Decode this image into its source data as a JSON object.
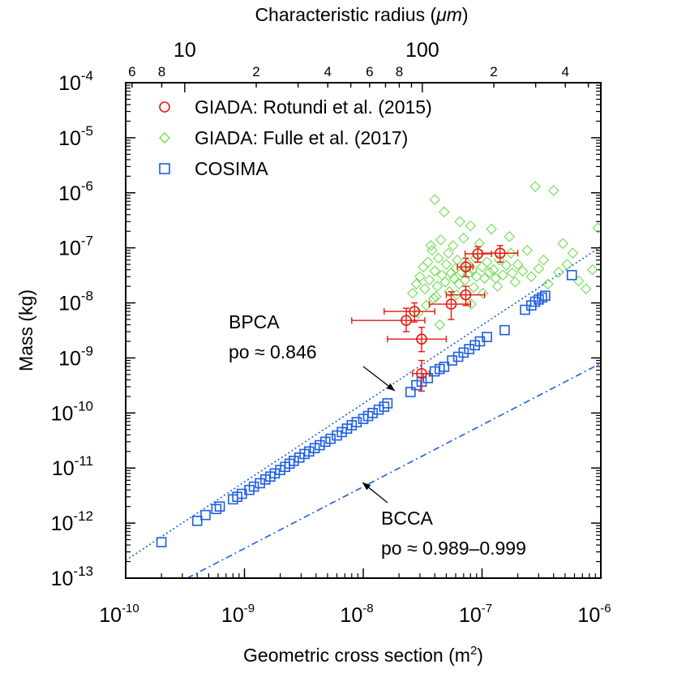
{
  "chart_data": {
    "type": "scatter",
    "x_scale": "log",
    "y_scale": "log",
    "xlabel": "Geometric cross section (m",
    "xlabel_sup": "2",
    "xlabel_end": ")",
    "ylabel": "Mass (kg)",
    "top_xlabel": "Characteristic radius (",
    "top_xlabel_mu": "μm",
    "top_xlabel_end": ")",
    "xlim": [
      1e-10,
      1e-06
    ],
    "ylim": [
      1e-13,
      0.0001
    ],
    "x_ticks": [
      {
        "base": "10",
        "exp": "-10",
        "value": 1e-10
      },
      {
        "base": "10",
        "exp": "-9",
        "value": 1e-09
      },
      {
        "base": "10",
        "exp": "-8",
        "value": 1e-08
      },
      {
        "base": "10",
        "exp": "-7",
        "value": 1e-07
      },
      {
        "base": "10",
        "exp": "-6",
        "value": 1e-06
      }
    ],
    "y_ticks": [
      {
        "base": "10",
        "exp": "-13",
        "value": 1e-13
      },
      {
        "base": "10",
        "exp": "-12",
        "value": 1e-12
      },
      {
        "base": "10",
        "exp": "-11",
        "value": 1e-11
      },
      {
        "base": "10",
        "exp": "-10",
        "value": 1e-10
      },
      {
        "base": "10",
        "exp": "-9",
        "value": 1e-09
      },
      {
        "base": "10",
        "exp": "-8",
        "value": 1e-08
      },
      {
        "base": "10",
        "exp": "-7",
        "value": 1e-07
      },
      {
        "base": "10",
        "exp": "-6",
        "value": 1e-06
      },
      {
        "base": "10",
        "exp": "-5",
        "value": 1e-05
      },
      {
        "base": "10",
        "exp": "-4",
        "value": 0.0001
      }
    ],
    "top_ticks": [
      {
        "label": "6",
        "radius_um": 6,
        "major": false
      },
      {
        "label": "8",
        "radius_um": 8,
        "major": false
      },
      {
        "label": "10",
        "radius_um": 10,
        "major": true
      },
      {
        "label": "2",
        "radius_um": 20,
        "major": false
      },
      {
        "label": "4",
        "radius_um": 40,
        "major": false
      },
      {
        "label": "6",
        "radius_um": 60,
        "major": false
      },
      {
        "label": "8",
        "radius_um": 80,
        "major": false
      },
      {
        "label": "100",
        "radius_um": 100,
        "major": true
      },
      {
        "label": "2",
        "radius_um": 200,
        "major": false
      },
      {
        "label": "4",
        "radius_um": 400,
        "major": false
      }
    ],
    "top_minor_unlabeled": [
      30,
      50,
      70,
      90,
      300,
      500
    ],
    "legend": {
      "placement": "top-left",
      "entries": [
        {
          "label": "GIADA: Rotundi et al. (2015)",
          "marker": "circle",
          "color": "#e8170f"
        },
        {
          "label": "GIADA: Fulle et al. (2017)",
          "marker": "diamond",
          "color": "#6fdc4e"
        },
        {
          "label": "COSIMA",
          "marker": "square",
          "color": "#1c5fe0"
        }
      ]
    },
    "annotations": [
      {
        "line1": "BPCA",
        "line2": "po ≈ 0.846"
      },
      {
        "line1": "BCCA",
        "line2": "po ≈ 0.989–0.999"
      }
    ],
    "lines": [
      {
        "name": "BPCA",
        "style": "dotted",
        "color": "#1c5fe0",
        "x": [
          1e-10,
          1e-06
        ],
        "y": [
          2.1e-13,
          1.05e-07
        ]
      },
      {
        "name": "BCCA",
        "style": "dashdot",
        "color": "#1c5fe0",
        "x": [
          3.3e-10,
          1e-06
        ],
        "y": [
          1e-13,
          8e-10
        ]
      }
    ],
    "series": [
      {
        "name": "GIADA: Rotundi et al. (2015)",
        "color": "#e8170f",
        "marker": "circle",
        "points": [
          {
            "x": 2.3e-08,
            "y": 4.8e-09,
            "xerr": [
              8e-09,
              3.3e-08
            ],
            "yerr": [
              3e-09,
              8e-09
            ]
          },
          {
            "x": 2.7e-08,
            "y": 7e-09,
            "xerr": [
              1.5e-08,
              4e-08
            ],
            "yerr": [
              4.5e-09,
              1e-08
            ]
          },
          {
            "x": 3.1e-08,
            "y": 2.2e-09,
            "xerr": [
              1.6e-08,
              5e-08
            ],
            "yerr": [
              1.3e-09,
              3.6e-09
            ]
          },
          {
            "x": 3.1e-08,
            "y": 5.2e-10,
            "xerr": [
              2.6e-08,
              3.6e-08
            ],
            "yerr": [
              2.5e-10,
              9e-10
            ]
          },
          {
            "x": 5.5e-08,
            "y": 9.5e-09,
            "xerr": [
              3.6e-08,
              8e-08
            ],
            "yerr": [
              5e-09,
              1.6e-08
            ]
          },
          {
            "x": 7.3e-08,
            "y": 1.4e-08,
            "xerr": [
              5e-08,
              1.05e-07
            ],
            "yerr": [
              9e-09,
              2e-08
            ]
          },
          {
            "x": 7.3e-08,
            "y": 4.5e-08,
            "xerr": [
              6.2e-08,
              8.4e-08
            ],
            "yerr": [
              3e-08,
              6.5e-08
            ]
          },
          {
            "x": 9.2e-08,
            "y": 7.8e-08,
            "xerr": [
              7.2e-08,
              1.2e-07
            ],
            "yerr": [
              5.5e-08,
              1.05e-07
            ]
          },
          {
            "x": 1.42e-07,
            "y": 8e-08,
            "xerr": [
              1e-07,
              2e-07
            ],
            "yerr": [
              5.5e-08,
              1.1e-07
            ]
          }
        ]
      },
      {
        "name": "GIADA: Fulle et al. (2017)",
        "color": "#6fdc4e",
        "marker": "diamond",
        "points": [
          {
            "x": 2.6e-08,
            "y": 1.5e-08
          },
          {
            "x": 2.8e-08,
            "y": 2.2e-08
          },
          {
            "x": 3e-08,
            "y": 3e-08
          },
          {
            "x": 3.2e-08,
            "y": 4.5e-08
          },
          {
            "x": 3.3e-08,
            "y": 1.8e-08
          },
          {
            "x": 3.5e-08,
            "y": 5.5e-08
          },
          {
            "x": 3.6e-08,
            "y": 2.6e-08
          },
          {
            "x": 3.8e-08,
            "y": 9e-08
          },
          {
            "x": 3.9e-08,
            "y": 1.2e-08
          },
          {
            "x": 4e-08,
            "y": 3.8e-08
          },
          {
            "x": 4e-08,
            "y": 7.5e-07
          },
          {
            "x": 4.2e-08,
            "y": 2e-08
          },
          {
            "x": 4.3e-08,
            "y": 6.5e-08
          },
          {
            "x": 4.5e-08,
            "y": 1.4e-07
          },
          {
            "x": 4.6e-08,
            "y": 3.2e-08
          },
          {
            "x": 4.8e-08,
            "y": 4.5e-07
          },
          {
            "x": 4.9e-08,
            "y": 2.4e-08
          },
          {
            "x": 5e-08,
            "y": 5e-08
          },
          {
            "x": 5.2e-08,
            "y": 8e-08
          },
          {
            "x": 5.3e-08,
            "y": 1.6e-08
          },
          {
            "x": 5.5e-08,
            "y": 3.5e-08
          },
          {
            "x": 5.7e-08,
            "y": 1.1e-07
          },
          {
            "x": 5.8e-08,
            "y": 2.8e-08
          },
          {
            "x": 6e-08,
            "y": 4.2e-08
          },
          {
            "x": 6.2e-08,
            "y": 6e-08
          },
          {
            "x": 6.4e-08,
            "y": 2.2e-08
          },
          {
            "x": 6.5e-08,
            "y": 3e-07
          },
          {
            "x": 6.7e-08,
            "y": 3.6e-08
          },
          {
            "x": 7e-08,
            "y": 1.5e-07
          },
          {
            "x": 7.2e-08,
            "y": 2.6e-08
          },
          {
            "x": 7.5e-08,
            "y": 5.2e-08
          },
          {
            "x": 7.7e-08,
            "y": 3.4e-08
          },
          {
            "x": 8e-08,
            "y": 2.5e-07
          },
          {
            "x": 8.3e-08,
            "y": 4e-08
          },
          {
            "x": 8.5e-08,
            "y": 1.9e-08
          },
          {
            "x": 8.8e-08,
            "y": 6.5e-08
          },
          {
            "x": 9e-08,
            "y": 3e-08
          },
          {
            "x": 9.5e-08,
            "y": 1.2e-07
          },
          {
            "x": 1e-07,
            "y": 4.5e-08
          },
          {
            "x": 1.05e-07,
            "y": 2.8e-08
          },
          {
            "x": 1.1e-07,
            "y": 5.5e-08
          },
          {
            "x": 1.15e-07,
            "y": 3.6e-08
          },
          {
            "x": 1.2e-07,
            "y": 2.2e-07
          },
          {
            "x": 1.25e-07,
            "y": 4e-08
          },
          {
            "x": 1.3e-07,
            "y": 2.8e-08
          },
          {
            "x": 1.4e-07,
            "y": 6e-08
          },
          {
            "x": 1.5e-07,
            "y": 3.2e-08
          },
          {
            "x": 1.6e-07,
            "y": 4.8e-08
          },
          {
            "x": 1.7e-07,
            "y": 1.6e-07
          },
          {
            "x": 1.8e-07,
            "y": 3.5e-08
          },
          {
            "x": 1.9e-07,
            "y": 2.4e-08
          },
          {
            "x": 2e-07,
            "y": 5e-08
          },
          {
            "x": 2.2e-07,
            "y": 3.8e-08
          },
          {
            "x": 2.4e-07,
            "y": 9e-08
          },
          {
            "x": 2.6e-07,
            "y": 3e-08
          },
          {
            "x": 2.8e-07,
            "y": 1.3e-06
          },
          {
            "x": 3e-07,
            "y": 4.2e-08
          },
          {
            "x": 3.3e-07,
            "y": 6e-08
          },
          {
            "x": 3.6e-07,
            "y": 2.2e-08
          },
          {
            "x": 4e-07,
            "y": 1.1e-06
          },
          {
            "x": 4.4e-07,
            "y": 3.6e-08
          },
          {
            "x": 4.8e-07,
            "y": 1.2e-07
          },
          {
            "x": 5.2e-07,
            "y": 5e-08
          },
          {
            "x": 5.8e-07,
            "y": 8e-08
          },
          {
            "x": 6.5e-07,
            "y": 2.5e-08
          },
          {
            "x": 7.5e-07,
            "y": 1.8e-08
          },
          {
            "x": 8.5e-07,
            "y": 4e-08
          },
          {
            "x": 9.5e-07,
            "y": 2.3e-07
          },
          {
            "x": 2.9e-08,
            "y": 6.5e-09
          },
          {
            "x": 3.4e-08,
            "y": 9e-09
          },
          {
            "x": 4.4e-08,
            "y": 4e-09
          },
          {
            "x": 3.7e-08,
            "y": 1.1e-07
          },
          {
            "x": 4.1e-08,
            "y": 1.3e-08
          },
          {
            "x": 6.1e-08,
            "y": 1.4e-08
          },
          {
            "x": 8.1e-08,
            "y": 9.5e-09
          },
          {
            "x": 1.02e-07,
            "y": 1.5e-08
          },
          {
            "x": 1.35e-07,
            "y": 2e-08
          },
          {
            "x": 1.75e-07,
            "y": 8e-08
          }
        ]
      },
      {
        "name": "COSIMA",
        "color": "#1c5fe0",
        "marker": "square",
        "points": [
          {
            "x": 2e-10,
            "y": 4.5e-13
          },
          {
            "x": 4e-10,
            "y": 1.1e-12
          },
          {
            "x": 4.7e-10,
            "y": 1.4e-12
          },
          {
            "x": 5.8e-10,
            "y": 1.8e-12
          },
          {
            "x": 6.2e-10,
            "y": 2e-12
          },
          {
            "x": 8e-10,
            "y": 2.7e-12
          },
          {
            "x": 8.7e-10,
            "y": 3e-12
          },
          {
            "x": 9.5e-10,
            "y": 3.4e-12
          },
          {
            "x": 1.1e-09,
            "y": 4e-12
          },
          {
            "x": 1.2e-09,
            "y": 4.6e-12
          },
          {
            "x": 1.35e-09,
            "y": 5.3e-12
          },
          {
            "x": 1.5e-09,
            "y": 6.2e-12
          },
          {
            "x": 1.65e-09,
            "y": 7e-12
          },
          {
            "x": 1.8e-09,
            "y": 8e-12
          },
          {
            "x": 2e-09,
            "y": 9.2e-12
          },
          {
            "x": 2.2e-09,
            "y": 1.05e-11
          },
          {
            "x": 2.4e-09,
            "y": 1.2e-11
          },
          {
            "x": 2.6e-09,
            "y": 1.35e-11
          },
          {
            "x": 2.9e-09,
            "y": 1.55e-11
          },
          {
            "x": 3.2e-09,
            "y": 1.8e-11
          },
          {
            "x": 3.5e-09,
            "y": 2e-11
          },
          {
            "x": 3.9e-09,
            "y": 2.3e-11
          },
          {
            "x": 4.3e-09,
            "y": 2.6e-11
          },
          {
            "x": 4.8e-09,
            "y": 3e-11
          },
          {
            "x": 5.3e-09,
            "y": 3.4e-11
          },
          {
            "x": 6e-09,
            "y": 3.9e-11
          },
          {
            "x": 6.6e-09,
            "y": 4.5e-11
          },
          {
            "x": 7.3e-09,
            "y": 5.2e-11
          },
          {
            "x": 8e-09,
            "y": 6e-11
          },
          {
            "x": 8.8e-09,
            "y": 6.8e-11
          },
          {
            "x": 1e-08,
            "y": 7.8e-11
          },
          {
            "x": 1.1e-08,
            "y": 8.8e-11
          },
          {
            "x": 1.2e-08,
            "y": 1e-10
          },
          {
            "x": 1.35e-08,
            "y": 1.15e-10
          },
          {
            "x": 1.5e-08,
            "y": 1.3e-10
          },
          {
            "x": 1.6e-08,
            "y": 1.5e-10
          },
          {
            "x": 2.5e-08,
            "y": 2.4e-10
          },
          {
            "x": 2.8e-08,
            "y": 3.2e-10
          },
          {
            "x": 3.1e-08,
            "y": 3.7e-10
          },
          {
            "x": 3.5e-08,
            "y": 4.3e-10
          },
          {
            "x": 4e-08,
            "y": 5.7e-10
          },
          {
            "x": 4.4e-08,
            "y": 6.3e-10
          },
          {
            "x": 4.8e-08,
            "y": 6.9e-10
          },
          {
            "x": 5.6e-08,
            "y": 9e-10
          },
          {
            "x": 6.3e-08,
            "y": 1.05e-09
          },
          {
            "x": 7e-08,
            "y": 1.25e-09
          },
          {
            "x": 7.8e-08,
            "y": 1.45e-09
          },
          {
            "x": 8.7e-08,
            "y": 1.7e-09
          },
          {
            "x": 9.6e-08,
            "y": 2e-09
          },
          {
            "x": 1.1e-07,
            "y": 2.4e-09
          },
          {
            "x": 1.55e-07,
            "y": 3.2e-09
          },
          {
            "x": 2.3e-07,
            "y": 7.5e-09
          },
          {
            "x": 2.6e-07,
            "y": 9e-09
          },
          {
            "x": 2.8e-07,
            "y": 1.05e-08
          },
          {
            "x": 3e-07,
            "y": 1.15e-08
          },
          {
            "x": 3.2e-07,
            "y": 1.25e-08
          },
          {
            "x": 3.4e-07,
            "y": 1.35e-08
          },
          {
            "x": 5.7e-07,
            "y": 3.2e-08
          }
        ]
      }
    ]
  }
}
